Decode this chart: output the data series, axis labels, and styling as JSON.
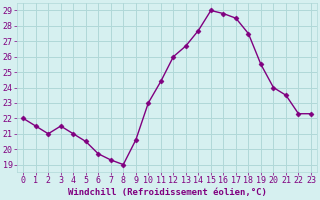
{
  "x": [
    0,
    1,
    2,
    3,
    4,
    5,
    6,
    7,
    8,
    9,
    10,
    11,
    12,
    13,
    14,
    15,
    16,
    17,
    18,
    19,
    20,
    21,
    22,
    23
  ],
  "y": [
    22.0,
    21.5,
    21.0,
    21.5,
    21.0,
    20.5,
    19.7,
    19.3,
    19.0,
    20.6,
    23.0,
    24.4,
    26.0,
    26.7,
    27.7,
    29.0,
    28.8,
    28.5,
    27.5,
    25.5,
    24.0,
    23.5,
    22.3,
    22.3
  ],
  "line_color": "#800080",
  "marker": "D",
  "marker_size": 2.5,
  "bg_color": "#d6f0f0",
  "grid_color": "#b0d8d8",
  "xlabel": "Windchill (Refroidissement éolien,°C)",
  "xlabel_color": "#800080",
  "xlabel_bg": "#d6f0f0",
  "ylabel_ticks": [
    19,
    20,
    21,
    22,
    23,
    24,
    25,
    26,
    27,
    28,
    29
  ],
  "ylim": [
    18.5,
    29.5
  ],
  "xlim": [
    -0.5,
    23.5
  ],
  "tick_color": "#800080",
  "axis_label_fontsize": 6.5,
  "tick_fontsize": 6.0,
  "figsize": [
    3.2,
    2.0
  ],
  "dpi": 100
}
